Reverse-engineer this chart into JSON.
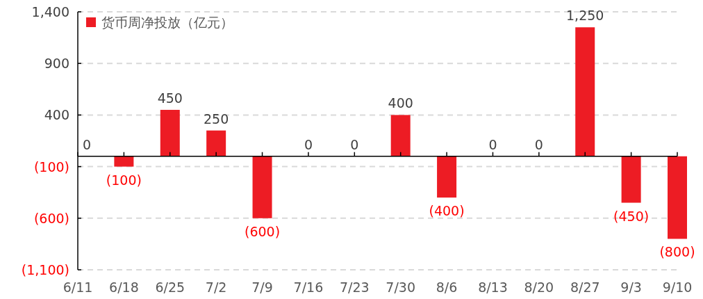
{
  "chart_data": {
    "type": "bar",
    "categories": [
      "6/11",
      "6/18",
      "6/25",
      "7/2",
      "7/9",
      "7/16",
      "7/23",
      "7/30",
      "8/6",
      "8/13",
      "8/20",
      "8/27",
      "9/3",
      "9/10"
    ],
    "series": [
      {
        "name": "货币周净投放（亿元）",
        "color": "#ed1c24",
        "values": [
          0,
          -100,
          450,
          250,
          -600,
          0,
          0,
          400,
          -400,
          0,
          0,
          1250,
          -450,
          -800
        ],
        "value_labels": [
          "0",
          "(100)",
          "450",
          "250",
          "(600)",
          "0",
          "0",
          "400",
          "(400)",
          "0",
          "0",
          "1,250",
          "(450)",
          "(800)"
        ]
      }
    ],
    "ylim": [
      -1100,
      1400
    ],
    "yticks": [
      {
        "value": -1100,
        "label": "(1,100)"
      },
      {
        "value": -600,
        "label": "(600)"
      },
      {
        "value": -100,
        "label": "(100)"
      },
      400,
      900,
      {
        "value": 1400,
        "label": "1,400"
      }
    ],
    "grid": "y",
    "legend": "top left"
  }
}
